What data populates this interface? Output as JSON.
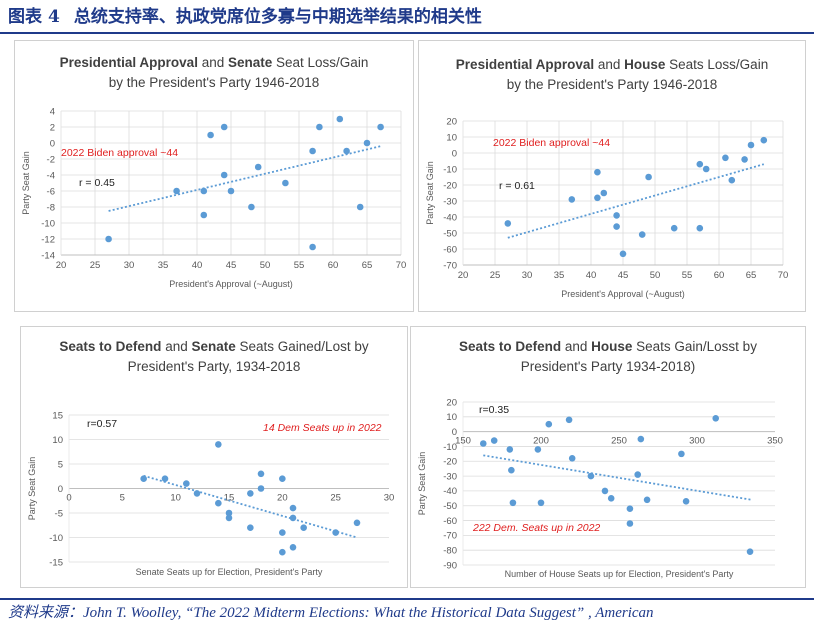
{
  "header": {
    "figure_label": "图表",
    "figure_number": "4",
    "figure_title": "总统支持率、执政党席位多寡与中期选举结果的相关性"
  },
  "source": "资料来源：John T. Woolley, “The 2022 Midterm Elections: What the Historical Data Suggest” , American",
  "colors": {
    "accent": "#1f3a8a",
    "point": "#5b9bd5",
    "trend": "#5b9bd5",
    "annotation": "#e02020"
  },
  "chart_data": [
    {
      "id": "approval-senate",
      "type": "scatter",
      "title_parts": [
        "Presidential Approval",
        " and ",
        "Senate",
        " Seat Loss/Gain"
      ],
      "title_line2": "by the President's Party 1946-2018",
      "xlabel": "President's Approval (~August)",
      "ylabel": "Party Seat Gain",
      "xlim": [
        20,
        70
      ],
      "ylim": [
        -14,
        4
      ],
      "xticks": [
        20,
        25,
        30,
        35,
        40,
        45,
        50,
        55,
        60,
        65,
        70
      ],
      "yticks": [
        -14,
        -12,
        -10,
        -8,
        -6,
        -4,
        -2,
        0,
        2,
        4
      ],
      "grid": true,
      "annotations": {
        "note": "2022 Biden approval ~44",
        "r": "r = 0.45"
      },
      "trend": [
        [
          27,
          -8.5
        ],
        [
          67,
          -0.4
        ]
      ],
      "points": [
        [
          27,
          -12
        ],
        [
          37,
          -6
        ],
        [
          41,
          -6
        ],
        [
          41,
          -9
        ],
        [
          42,
          1
        ],
        [
          44,
          2
        ],
        [
          44,
          -4
        ],
        [
          45,
          -6
        ],
        [
          48,
          -8
        ],
        [
          49,
          -3
        ],
        [
          53,
          -5
        ],
        [
          57,
          -1
        ],
        [
          57,
          -13
        ],
        [
          58,
          2
        ],
        [
          61,
          3
        ],
        [
          62,
          -1
        ],
        [
          64,
          -8
        ],
        [
          65,
          0
        ],
        [
          67,
          2
        ]
      ]
    },
    {
      "id": "approval-house",
      "type": "scatter",
      "title_parts": [
        "Presidential Approval",
        " and ",
        "House",
        " Seats Loss/Gain"
      ],
      "title_line2": "by the President's Party 1946-2018",
      "xlabel": "President's Approval (~August)",
      "ylabel": "Party Seat Gain",
      "xlim": [
        20,
        70
      ],
      "ylim": [
        -70,
        20
      ],
      "xticks": [
        20,
        25,
        30,
        35,
        40,
        45,
        50,
        55,
        60,
        65,
        70
      ],
      "yticks": [
        -70,
        -60,
        -50,
        -40,
        -30,
        -20,
        -10,
        0,
        10,
        20
      ],
      "grid": true,
      "annotations": {
        "note": "2022 Biden approval ~44",
        "r": "r = 0.61"
      },
      "trend": [
        [
          27,
          -53
        ],
        [
          67,
          -7
        ]
      ],
      "points": [
        [
          27,
          -44
        ],
        [
          37,
          -29
        ],
        [
          41,
          -12
        ],
        [
          41,
          -28
        ],
        [
          42,
          -25
        ],
        [
          44,
          -39
        ],
        [
          44,
          -46
        ],
        [
          45,
          -63
        ],
        [
          48,
          -51
        ],
        [
          49,
          -15
        ],
        [
          53,
          -47
        ],
        [
          57,
          -7
        ],
        [
          57,
          -47
        ],
        [
          58,
          -10
        ],
        [
          61,
          -3
        ],
        [
          62,
          -17
        ],
        [
          64,
          -4
        ],
        [
          65,
          5
        ],
        [
          67,
          8
        ]
      ]
    },
    {
      "id": "defend-senate",
      "type": "scatter",
      "title_parts": [
        "Seats to Defend",
        " and ",
        "Senate",
        " Seats Gained/Lost by"
      ],
      "title_line2": "President's Party, 1934-2018",
      "xlabel": "Senate Seats up for Election, President's Party",
      "ylabel": "Party Seat Gain",
      "xlim": [
        0,
        30
      ],
      "ylim": [
        -15,
        15
      ],
      "xticks": [
        0,
        5,
        10,
        15,
        20,
        25,
        30
      ],
      "yticks": [
        -15,
        -10,
        -5,
        0,
        5,
        10,
        15
      ],
      "grid": true,
      "annotations": {
        "note": "14 Dem Seats up in 2022",
        "r": "r=0.57"
      },
      "trend": [
        [
          7,
          2.6
        ],
        [
          27,
          -10
        ]
      ],
      "points": [
        [
          7,
          2
        ],
        [
          9,
          2
        ],
        [
          11,
          1
        ],
        [
          12,
          -1
        ],
        [
          14,
          9
        ],
        [
          14,
          -3
        ],
        [
          15,
          -5
        ],
        [
          15,
          -6
        ],
        [
          17,
          -8
        ],
        [
          17,
          -1
        ],
        [
          18,
          0
        ],
        [
          18,
          3
        ],
        [
          20,
          2
        ],
        [
          20,
          -9
        ],
        [
          20,
          -13
        ],
        [
          21,
          -4
        ],
        [
          21,
          -6
        ],
        [
          21,
          -12
        ],
        [
          22,
          -8
        ],
        [
          25,
          -9
        ],
        [
          27,
          -7
        ]
      ]
    },
    {
      "id": "defend-house",
      "type": "scatter",
      "title_parts": [
        "Seats to Defend",
        " and ",
        "House",
        " Seats Gain/Losst by"
      ],
      "title_line2": "President's Party 1934-2018)",
      "xlabel": "Number of House Seats up for Election, President's Party",
      "ylabel": "Party Seat Gain",
      "xlim": [
        150,
        350
      ],
      "ylim": [
        -90,
        20
      ],
      "xticks": [
        150,
        200,
        250,
        300,
        350
      ],
      "yticks": [
        -90,
        -80,
        -70,
        -60,
        -50,
        -40,
        -30,
        -20,
        -10,
        0,
        10,
        20
      ],
      "grid": true,
      "annotations": {
        "note": "222 Dem. Seats up in 2022",
        "r": "r=0.35"
      },
      "trend": [
        [
          163,
          -16
        ],
        [
          335,
          -46
        ]
      ],
      "points": [
        [
          163,
          -8
        ],
        [
          170,
          -6
        ],
        [
          180,
          -12
        ],
        [
          181,
          -26
        ],
        [
          182,
          -48
        ],
        [
          198,
          -12
        ],
        [
          200,
          -48
        ],
        [
          205,
          5
        ],
        [
          218,
          8
        ],
        [
          220,
          -18
        ],
        [
          232,
          -30
        ],
        [
          241,
          -40
        ],
        [
          245,
          -45
        ],
        [
          257,
          -52
        ],
        [
          257,
          -62
        ],
        [
          262,
          -29
        ],
        [
          264,
          -5
        ],
        [
          268,
          -46
        ],
        [
          290,
          -15
        ],
        [
          293,
          -47
        ],
        [
          312,
          9
        ],
        [
          334,
          -81
        ]
      ]
    }
  ]
}
